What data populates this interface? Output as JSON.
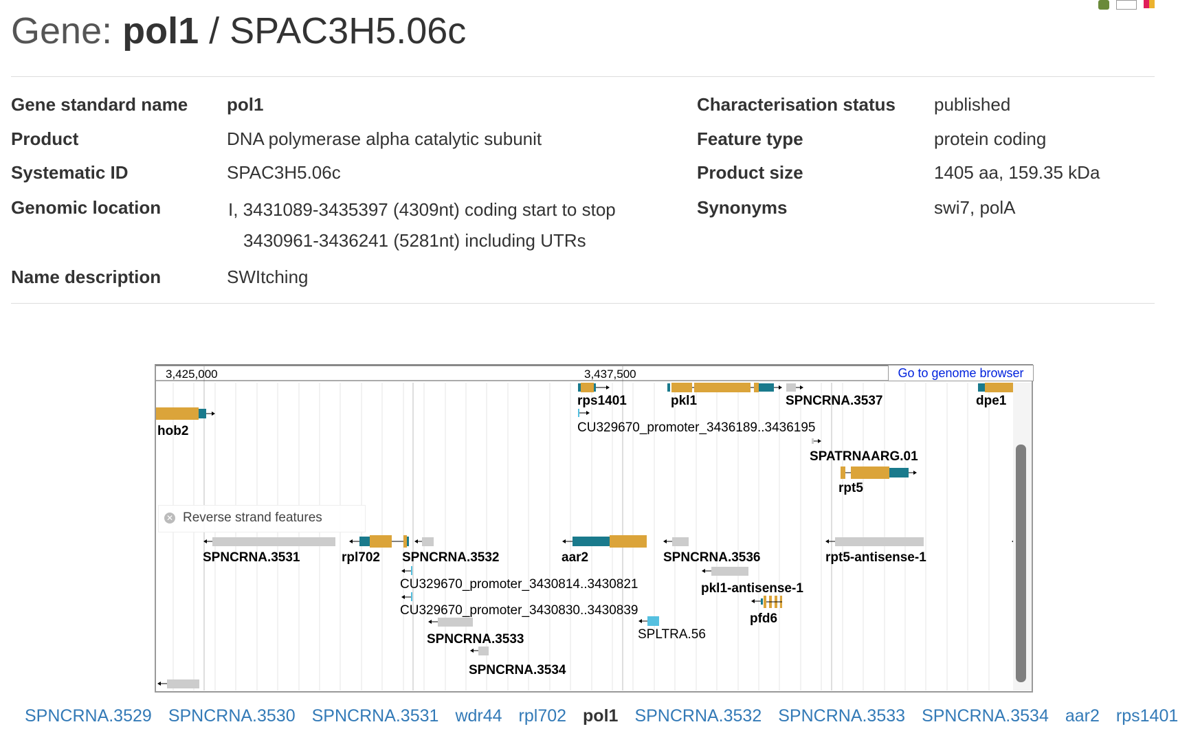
{
  "page": {
    "title_prefix": "Gene: ",
    "gene_name": "pol1",
    "title_sep": " / ",
    "systematic_id": "SPAC3H5.06c"
  },
  "details": {
    "left": [
      {
        "label": "Gene standard name",
        "value": "pol1"
      },
      {
        "label": "Product",
        "value": "DNA polymerase alpha catalytic subunit"
      },
      {
        "label": "Systematic ID",
        "value": "SPAC3H5.06c"
      },
      {
        "label": "Genomic location",
        "value": "I, 3431089-3435397 (4309nt) coding start to stop",
        "value2": "3430961-3436241 (5281nt) including UTRs"
      },
      {
        "label": "Name description",
        "value": "SWItching"
      }
    ],
    "right": [
      {
        "label": "Characterisation status",
        "value": "published"
      },
      {
        "label": "Feature type",
        "value": "protein coding"
      },
      {
        "label": "Product size",
        "value": "1405 aa, 159.35 kDa"
      },
      {
        "label": "Synonyms",
        "value": "swi7, polA"
      }
    ]
  },
  "genome_browser": {
    "button_label": "Go to genome browser",
    "scale_labels": [
      "3,425,000",
      "3,437,500"
    ],
    "reverse_strand_label": "Reverse strand features",
    "colors": {
      "utr": "#1a7a8c",
      "cds": "#dba43a",
      "ncrna": "#cccccc",
      "ltr": "#55c0e0"
    },
    "forward_features": [
      "rps1401",
      "pkl1",
      "SPNCRNA.3537",
      "dpe1",
      "hob2",
      "CU329670_promoter_3436189..3436195",
      "SPATRNAARG.01",
      "rpt5"
    ],
    "reverse_features": [
      "SPNCRNA.3531",
      "rpl702",
      "SPNCRNA.3532",
      "aar2",
      "SPNCRNA.3536",
      "rpt5-antisense-1",
      "CU329670_promoter_3430814..3430821",
      "pkl1-antisense-1",
      "CU329670_promoter_3430830..3430839",
      "pfd6",
      "SPNCRNA.3533",
      "SPLTRA.56",
      "SPNCRNA.3534"
    ]
  },
  "neighbours": [
    "SPNCRNA.3529",
    "SPNCRNA.3530",
    "SPNCRNA.3531",
    "wdr44",
    "rpl702",
    "pol1",
    "SPNCRNA.3532",
    "SPNCRNA.3533",
    "SPNCRNA.3534",
    "aar2",
    "rps1401"
  ],
  "current_gene_index": 5
}
